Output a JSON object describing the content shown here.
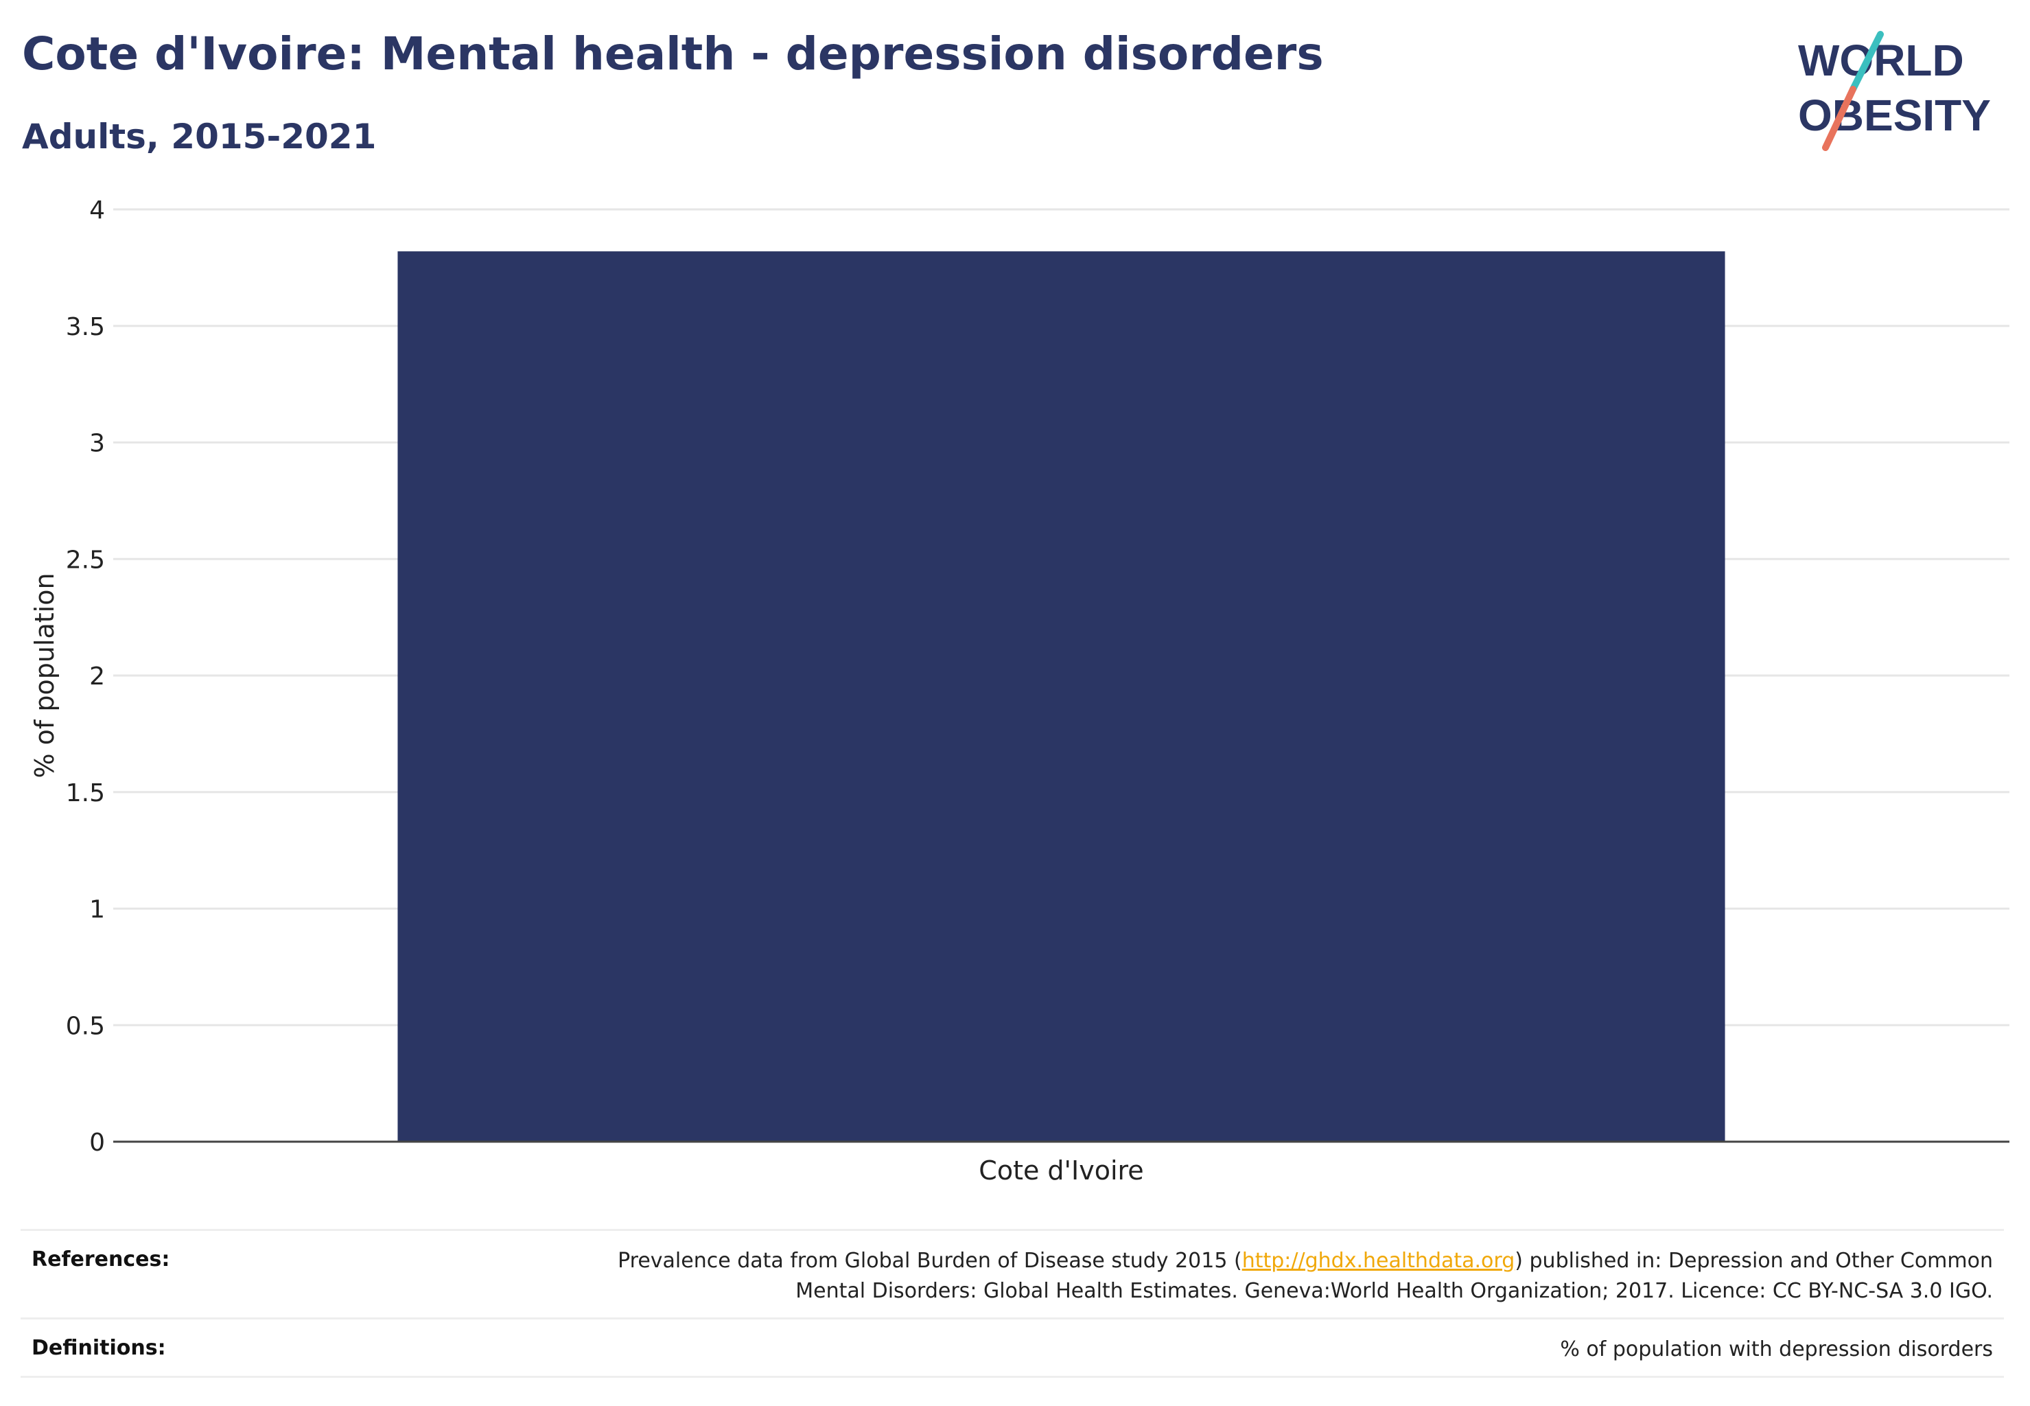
{
  "header": {
    "title": "Cote d'Ivoire: Mental health - depression disorders",
    "subtitle": "Adults, 2015-2021"
  },
  "logo": {
    "line1": "WORLD",
    "line2": "OBESITY",
    "colors": {
      "text": "#2b3664",
      "slash_teal": "#3bbfbf",
      "slash_coral": "#e8735c"
    }
  },
  "chart_data": {
    "type": "bar",
    "categories": [
      "Cote d'Ivoire"
    ],
    "values": [
      3.82
    ],
    "ylabel": "% of population",
    "xlabel": "",
    "ylim": [
      0,
      4
    ],
    "yticks": [
      0,
      0.5,
      1,
      1.5,
      2,
      2.5,
      3,
      3.5,
      4
    ],
    "ytick_labels": [
      "0",
      "0.5",
      "1",
      "1.5",
      "2",
      "2.5",
      "3",
      "3.5",
      "4"
    ],
    "grid": true,
    "bar_color": "#2b3664"
  },
  "footer": {
    "references_label": "References:",
    "references_before": "Prevalence data from Global Burden of Disease study 2015 (",
    "references_link": "http://ghdx.healthdata.org",
    "references_after_line1": ") published in: Depression and Other Common",
    "references_line2": "Mental Disorders: Global Health Estimates. Geneva:World Health Organization; 2017. Licence: CC BY-NC-SA 3.0 IGO.",
    "definitions_label": "Definitions:",
    "definitions_text": "% of population with depression disorders"
  }
}
